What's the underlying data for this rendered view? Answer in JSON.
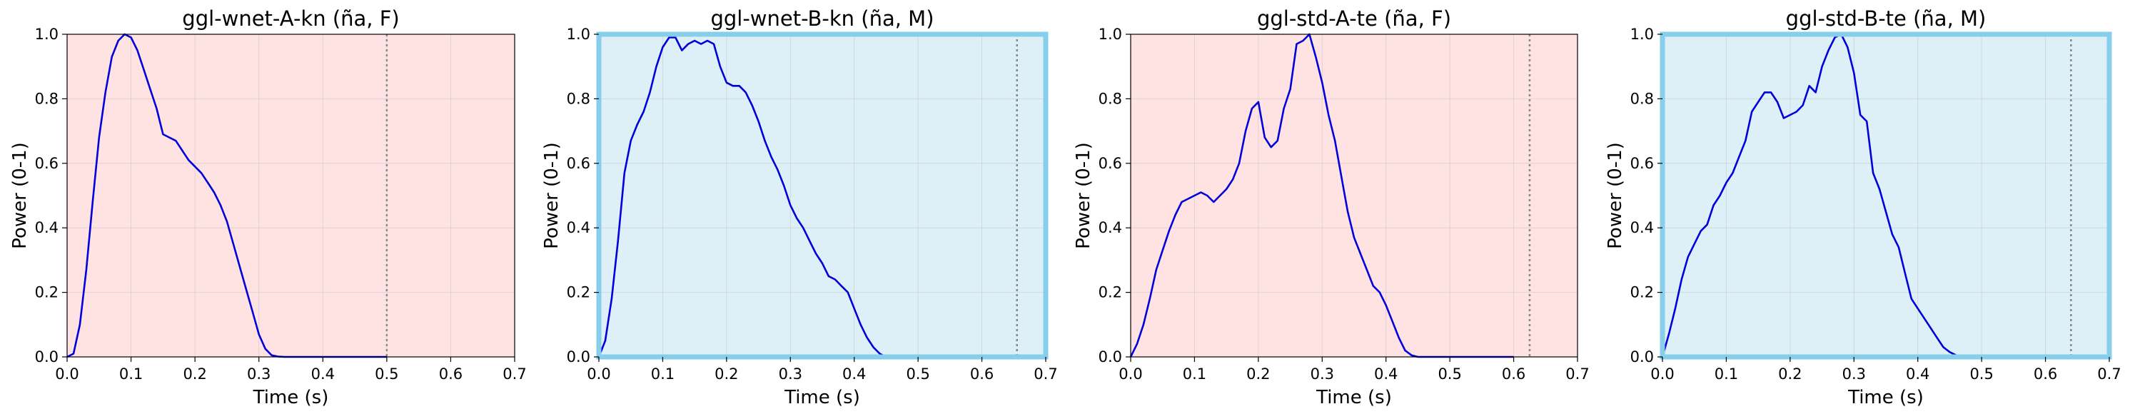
{
  "chart_data": [
    {
      "type": "line",
      "title": "ggl-wnet-A-kn (ña, F)",
      "xlabel": "Time (s)",
      "ylabel": "Power (0-1)",
      "xlim": [
        0,
        0.7
      ],
      "ylim": [
        0,
        1.0
      ],
      "xticks": [
        "0.0",
        "0.1",
        "0.2",
        "0.3",
        "0.4",
        "0.5",
        "0.6",
        "0.7"
      ],
      "yticks": [
        "0.0",
        "0.2",
        "0.4",
        "0.6",
        "0.8",
        "1.0"
      ],
      "grid": true,
      "background_color": "#ffe3e3",
      "highlighted": false,
      "vline_x": 0.5,
      "series": [
        {
          "color": "#0000dd",
          "x": [
            0,
            0.01,
            0.02,
            0.03,
            0.04,
            0.05,
            0.06,
            0.07,
            0.08,
            0.09,
            0.1,
            0.11,
            0.12,
            0.13,
            0.14,
            0.15,
            0.16,
            0.17,
            0.18,
            0.19,
            0.2,
            0.21,
            0.22,
            0.23,
            0.24,
            0.25,
            0.26,
            0.27,
            0.28,
            0.29,
            0.3,
            0.31,
            0.32,
            0.33,
            0.34,
            0.35,
            0.4,
            0.45,
            0.5
          ],
          "y": [
            0.0,
            0.01,
            0.1,
            0.27,
            0.48,
            0.68,
            0.82,
            0.93,
            0.98,
            1.0,
            0.99,
            0.95,
            0.89,
            0.83,
            0.77,
            0.69,
            0.68,
            0.67,
            0.64,
            0.61,
            0.59,
            0.57,
            0.54,
            0.51,
            0.47,
            0.42,
            0.35,
            0.28,
            0.21,
            0.14,
            0.07,
            0.025,
            0.005,
            0.001,
            0.0,
            0.0,
            0.0,
            0.0,
            0.0
          ]
        }
      ]
    },
    {
      "type": "line",
      "title": "ggl-wnet-B-kn (ña, M)",
      "xlabel": "Time (s)",
      "ylabel": "Power (0-1)",
      "xlim": [
        0,
        0.7
      ],
      "ylim": [
        0,
        1.0
      ],
      "xticks": [
        "0.0",
        "0.1",
        "0.2",
        "0.3",
        "0.4",
        "0.5",
        "0.6",
        "0.7"
      ],
      "yticks": [
        "0.0",
        "0.2",
        "0.4",
        "0.6",
        "0.8",
        "1.0"
      ],
      "grid": true,
      "background_color": "#ddf0f7",
      "highlighted": true,
      "highlight_color": "#87ceeb",
      "vline_x": 0.655,
      "series": [
        {
          "color": "#0000dd",
          "x": [
            0,
            0.01,
            0.02,
            0.03,
            0.04,
            0.05,
            0.06,
            0.07,
            0.08,
            0.09,
            0.1,
            0.11,
            0.12,
            0.13,
            0.14,
            0.15,
            0.16,
            0.17,
            0.18,
            0.19,
            0.2,
            0.21,
            0.22,
            0.23,
            0.24,
            0.25,
            0.26,
            0.27,
            0.28,
            0.29,
            0.3,
            0.31,
            0.32,
            0.33,
            0.34,
            0.35,
            0.36,
            0.37,
            0.38,
            0.39,
            0.4,
            0.41,
            0.42,
            0.43,
            0.44,
            0.45,
            0.46,
            0.47,
            0.48,
            0.49
          ],
          "y": [
            0.0,
            0.05,
            0.18,
            0.36,
            0.57,
            0.67,
            0.72,
            0.76,
            0.82,
            0.9,
            0.96,
            0.99,
            0.99,
            0.95,
            0.97,
            0.98,
            0.97,
            0.98,
            0.97,
            0.9,
            0.85,
            0.84,
            0.84,
            0.82,
            0.78,
            0.73,
            0.67,
            0.62,
            0.58,
            0.53,
            0.47,
            0.43,
            0.4,
            0.36,
            0.32,
            0.29,
            0.25,
            0.24,
            0.22,
            0.2,
            0.15,
            0.1,
            0.06,
            0.03,
            0.01,
            0.0,
            0.0,
            0.0,
            0.0,
            0.0
          ]
        }
      ]
    },
    {
      "type": "line",
      "title": "ggl-std-A-te (ña, F)",
      "xlabel": "Time (s)",
      "ylabel": "Power (0-1)",
      "xlim": [
        0,
        0.7
      ],
      "ylim": [
        0,
        1.0
      ],
      "xticks": [
        "0.0",
        "0.1",
        "0.2",
        "0.3",
        "0.4",
        "0.5",
        "0.6",
        "0.7"
      ],
      "yticks": [
        "0.0",
        "0.2",
        "0.4",
        "0.6",
        "0.8",
        "1.0"
      ],
      "grid": true,
      "background_color": "#ffe3e3",
      "highlighted": false,
      "vline_x": 0.625,
      "series": [
        {
          "color": "#0000dd",
          "x": [
            0,
            0.01,
            0.02,
            0.03,
            0.04,
            0.05,
            0.06,
            0.07,
            0.08,
            0.09,
            0.1,
            0.11,
            0.12,
            0.13,
            0.14,
            0.15,
            0.16,
            0.17,
            0.18,
            0.19,
            0.2,
            0.21,
            0.22,
            0.23,
            0.24,
            0.25,
            0.26,
            0.27,
            0.28,
            0.29,
            0.3,
            0.31,
            0.32,
            0.33,
            0.34,
            0.35,
            0.36,
            0.37,
            0.38,
            0.39,
            0.4,
            0.41,
            0.42,
            0.43,
            0.44,
            0.45,
            0.46,
            0.47,
            0.48,
            0.5,
            0.55,
            0.6
          ],
          "y": [
            0.0,
            0.04,
            0.1,
            0.18,
            0.27,
            0.33,
            0.39,
            0.44,
            0.48,
            0.49,
            0.5,
            0.51,
            0.5,
            0.48,
            0.5,
            0.52,
            0.55,
            0.6,
            0.7,
            0.77,
            0.79,
            0.68,
            0.65,
            0.67,
            0.77,
            0.83,
            0.97,
            0.98,
            1.0,
            0.93,
            0.85,
            0.75,
            0.67,
            0.56,
            0.45,
            0.37,
            0.32,
            0.27,
            0.22,
            0.2,
            0.16,
            0.11,
            0.06,
            0.02,
            0.005,
            0.0,
            0.0,
            0.0,
            0.0,
            0.0,
            0.0,
            0.0
          ]
        }
      ]
    },
    {
      "type": "line",
      "title": "ggl-std-B-te (ña, M)",
      "xlabel": "Time (s)",
      "ylabel": "Power (0-1)",
      "xlim": [
        0,
        0.7
      ],
      "ylim": [
        0,
        1.0
      ],
      "xticks": [
        "0.0",
        "0.1",
        "0.2",
        "0.3",
        "0.4",
        "0.5",
        "0.6",
        "0.7"
      ],
      "yticks": [
        "0.0",
        "0.2",
        "0.4",
        "0.6",
        "0.8",
        "1.0"
      ],
      "grid": true,
      "background_color": "#ddf0f7",
      "highlighted": true,
      "highlight_color": "#87ceeb",
      "vline_x": 0.64,
      "series": [
        {
          "color": "#0000dd",
          "x": [
            0,
            0.01,
            0.02,
            0.03,
            0.04,
            0.05,
            0.06,
            0.07,
            0.08,
            0.09,
            0.1,
            0.11,
            0.12,
            0.13,
            0.14,
            0.15,
            0.16,
            0.17,
            0.18,
            0.19,
            0.2,
            0.21,
            0.22,
            0.23,
            0.24,
            0.25,
            0.26,
            0.27,
            0.28,
            0.29,
            0.3,
            0.31,
            0.32,
            0.33,
            0.34,
            0.35,
            0.36,
            0.37,
            0.38,
            0.39,
            0.4,
            0.41,
            0.42,
            0.43,
            0.44,
            0.45,
            0.46,
            0.47,
            0.48,
            0.5,
            0.55,
            0.6
          ],
          "y": [
            0.0,
            0.07,
            0.15,
            0.24,
            0.31,
            0.35,
            0.39,
            0.41,
            0.47,
            0.5,
            0.54,
            0.57,
            0.62,
            0.67,
            0.76,
            0.79,
            0.82,
            0.82,
            0.79,
            0.74,
            0.75,
            0.76,
            0.78,
            0.84,
            0.82,
            0.9,
            0.95,
            0.99,
            1.0,
            0.96,
            0.88,
            0.75,
            0.73,
            0.57,
            0.52,
            0.45,
            0.38,
            0.34,
            0.26,
            0.18,
            0.15,
            0.12,
            0.09,
            0.06,
            0.03,
            0.015,
            0.005,
            0.0,
            0.0,
            0.0,
            0.0,
            0.0
          ]
        }
      ]
    }
  ]
}
